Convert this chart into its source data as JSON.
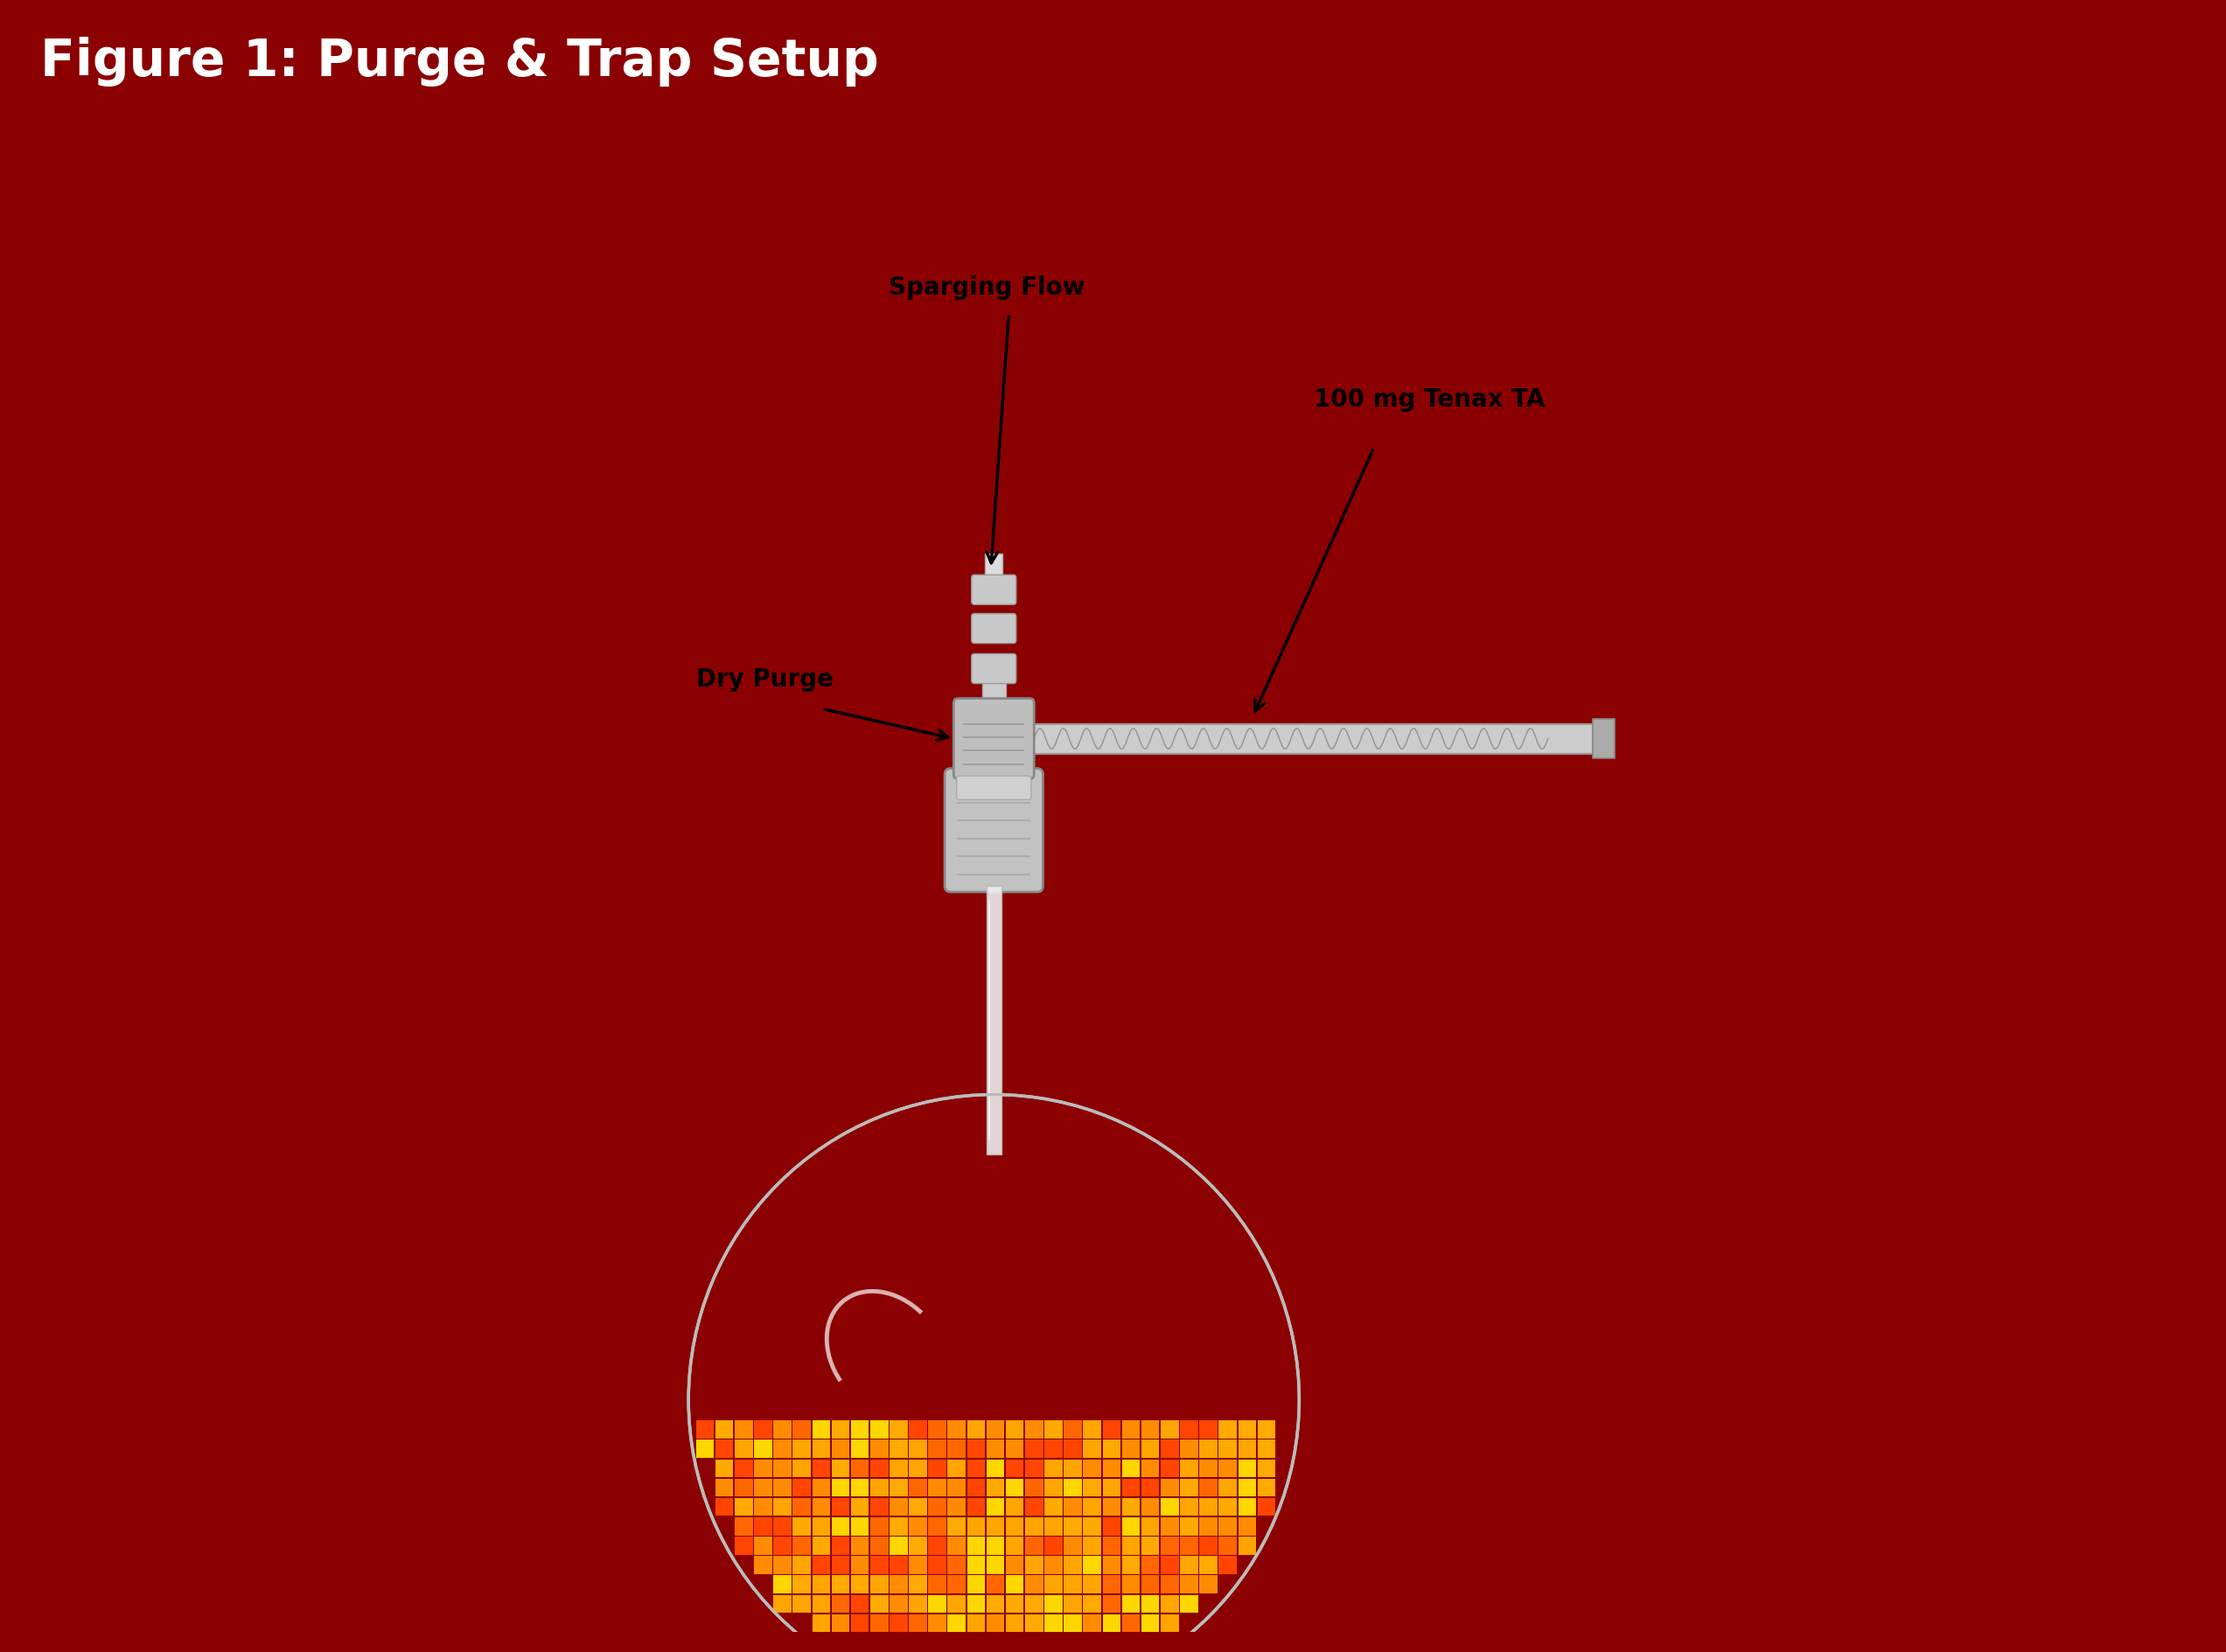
{
  "title": "Figure 1: Purge & Trap Setup",
  "title_bg_color": "#8B0000",
  "title_text_color": "#FFFFFF",
  "title_fontsize": 42,
  "background_color": "#FFFFFF",
  "border_color": "#8B0000",
  "fig_bg_color": "#8B0000",
  "label_sparging_flow": "Sparging Flow",
  "label_dry_purge": "Dry Purge",
  "label_tenax": "100 mg Tenax TA",
  "label_fontsize": 20,
  "liquid_colors": [
    "#FF8C00",
    "#FFD700",
    "#FF4500",
    "#FFA500",
    "#FF6600",
    "#FFAA00"
  ]
}
